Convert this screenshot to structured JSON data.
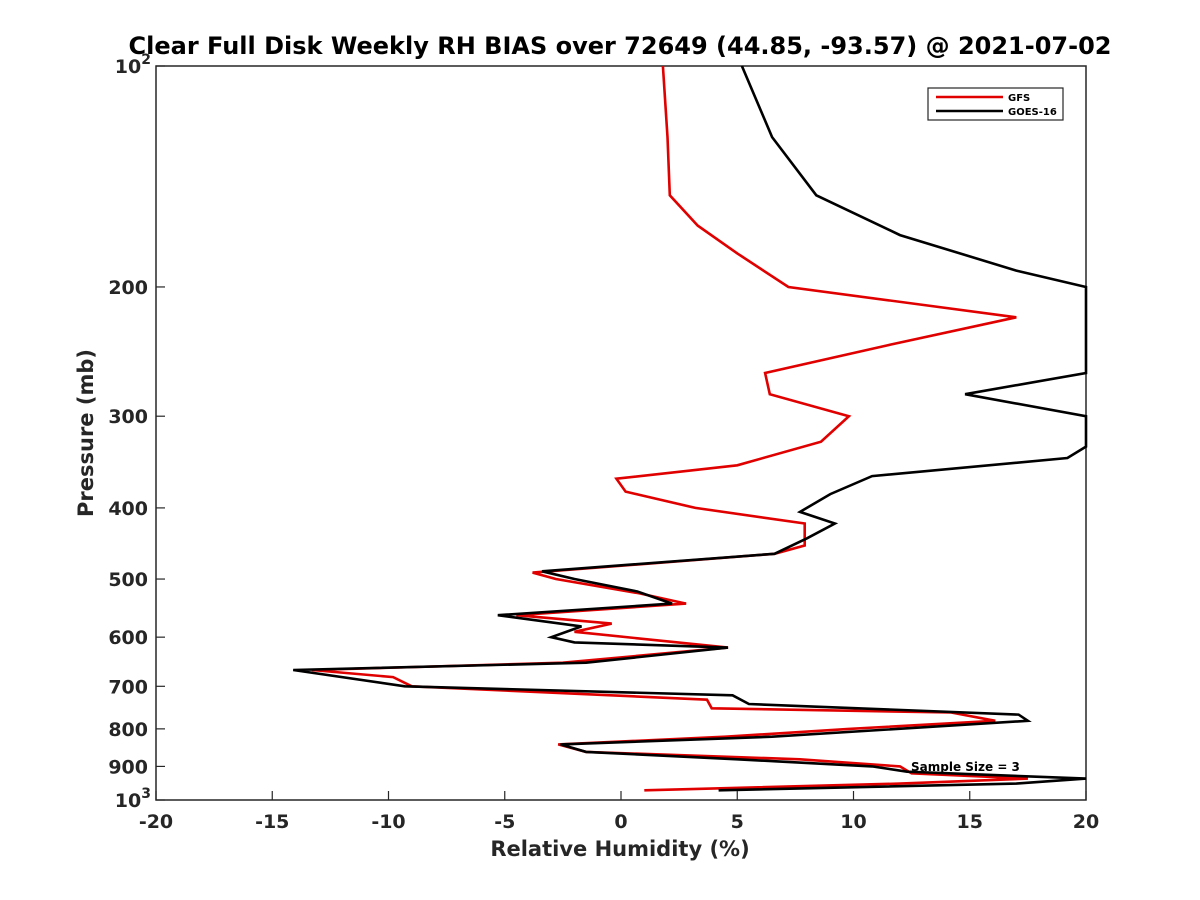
{
  "chart_data": {
    "type": "line",
    "title": "Clear Full Disk Weekly RH BIAS over 72649 (44.85, -93.57) @ 2021-07-02",
    "xlabel": "Relative Humidity (%)",
    "ylabel": "Pressure (mb)",
    "xlim": [
      -20,
      20
    ],
    "ylim": [
      100,
      1000
    ],
    "y_scale": "log",
    "y_reversed": true,
    "grid": false,
    "legend_position": "top-right",
    "x_ticks": [
      "-20",
      "-15",
      "-10",
      "-5",
      "0",
      "5",
      "10",
      "15",
      "20"
    ],
    "y_ticks": [
      {
        "base": "10",
        "exp": "2"
      },
      {
        "base": "200",
        "exp": ""
      },
      {
        "base": "300",
        "exp": ""
      },
      {
        "base": "400",
        "exp": ""
      },
      {
        "base": "500",
        "exp": ""
      },
      {
        "base": "600",
        "exp": ""
      },
      {
        "base": "700",
        "exp": ""
      },
      {
        "base": "800",
        "exp": ""
      },
      {
        "base": "900",
        "exp": ""
      },
      {
        "base": "10",
        "exp": "3"
      }
    ],
    "annotation": "Sample Size = 3",
    "series": [
      {
        "name": "GFS",
        "color": "#e00000",
        "points": [
          [
            1.8,
            100
          ],
          [
            2.0,
            125
          ],
          [
            2.1,
            150
          ],
          [
            3.3,
            165
          ],
          [
            5.0,
            180
          ],
          [
            7.2,
            200
          ],
          [
            17.0,
            220
          ],
          [
            11.5,
            240
          ],
          [
            6.2,
            262
          ],
          [
            6.4,
            280
          ],
          [
            9.8,
            300
          ],
          [
            8.6,
            325
          ],
          [
            5.0,
            350
          ],
          [
            -0.2,
            365
          ],
          [
            0.2,
            380
          ],
          [
            3.2,
            400
          ],
          [
            7.9,
            420
          ],
          [
            7.9,
            450
          ],
          [
            6.6,
            462
          ],
          [
            -3.8,
            490
          ],
          [
            -2.8,
            500
          ],
          [
            0.8,
            523
          ],
          [
            2.8,
            540
          ],
          [
            -4.5,
            560
          ],
          [
            -0.4,
            575
          ],
          [
            -2.0,
            590
          ],
          [
            4.6,
            620
          ],
          [
            -2.5,
            650
          ],
          [
            -13.3,
            665
          ],
          [
            -9.8,
            680
          ],
          [
            -9.0,
            700
          ],
          [
            3.7,
            730
          ],
          [
            3.9,
            750
          ],
          [
            14.2,
            760
          ],
          [
            16.1,
            780
          ],
          [
            9.8,
            800
          ],
          [
            4.5,
            820
          ],
          [
            -2.7,
            840
          ],
          [
            -1.5,
            860
          ],
          [
            7.7,
            880
          ],
          [
            12.0,
            900
          ],
          [
            12.5,
            920
          ],
          [
            17.5,
            935
          ],
          [
            12.0,
            950
          ],
          [
            1.0,
            970
          ]
        ]
      },
      {
        "name": "GOES-16",
        "color": "#000000",
        "points": [
          [
            5.2,
            100
          ],
          [
            6.5,
            125
          ],
          [
            8.4,
            150
          ],
          [
            12.0,
            170
          ],
          [
            17.0,
            190
          ],
          [
            20.0,
            200
          ],
          [
            20.0,
            262
          ],
          [
            14.8,
            280
          ],
          [
            20.0,
            300
          ],
          [
            20.0,
            330
          ],
          [
            19.2,
            342
          ],
          [
            10.8,
            362
          ],
          [
            9.0,
            383
          ],
          [
            7.7,
            405
          ],
          [
            9.2,
            420
          ],
          [
            8.0,
            440
          ],
          [
            6.6,
            462
          ],
          [
            -3.4,
            488
          ],
          [
            -2.0,
            500
          ],
          [
            0.7,
            520
          ],
          [
            2.2,
            540
          ],
          [
            -5.3,
            560
          ],
          [
            -1.7,
            580
          ],
          [
            -3.0,
            600
          ],
          [
            -2.0,
            610
          ],
          [
            4.6,
            620
          ],
          [
            -1.5,
            650
          ],
          [
            -14.1,
            665
          ],
          [
            -9.3,
            700
          ],
          [
            4.8,
            720
          ],
          [
            5.5,
            740
          ],
          [
            17.1,
            765
          ],
          [
            17.5,
            780
          ],
          [
            6.5,
            820
          ],
          [
            -2.6,
            840
          ],
          [
            -1.5,
            860
          ],
          [
            5.0,
            880
          ],
          [
            10.8,
            900
          ],
          [
            12.3,
            915
          ],
          [
            20.0,
            935
          ],
          [
            17.0,
            950
          ],
          [
            4.2,
            970
          ]
        ]
      }
    ]
  }
}
